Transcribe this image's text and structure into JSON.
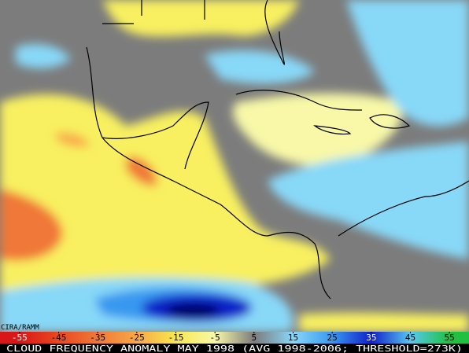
{
  "credit": "CIRA/RAMM",
  "colorbar": {
    "ticks": [
      -55,
      -45,
      -35,
      -25,
      -15,
      -5,
      5,
      15,
      25,
      35,
      45,
      55
    ],
    "colors": [
      "#d81818",
      "#e84820",
      "#f07838",
      "#f8a848",
      "#f8e850",
      "#f8f8a8",
      "#7c7c7c",
      "#88d8f8",
      "#3898f0",
      "#1020c8",
      "#58c8f0",
      "#20c040"
    ]
  },
  "caption": "CLOUD FREQUENCY ANOMALY MAY 1998 (AVG 1998-2006; THRESHOLD=273K)"
}
